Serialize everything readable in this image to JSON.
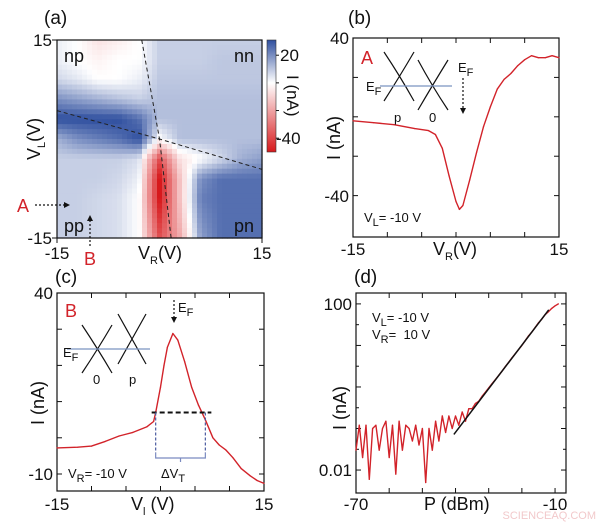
{
  "chart_data": [
    {
      "panel": "(a)",
      "type": "heatmap",
      "xlabel": {
        "main": "V",
        "sub": "R",
        "rest": "(V)"
      },
      "ylabel": {
        "main": "V",
        "sub": "L",
        "rest": "(V)"
      },
      "xlim": [
        -15,
        15
      ],
      "ylim": [
        -15,
        15
      ],
      "x_tick_labels": [
        "-15",
        "15"
      ],
      "y_tick_labels": [
        "15",
        "-15"
      ],
      "x": [
        -15,
        -12,
        -9,
        -6,
        -3,
        0,
        3,
        6,
        9,
        12,
        15
      ],
      "y": [
        15,
        12,
        9,
        6,
        3,
        0,
        -3,
        -6,
        -9,
        -12,
        -15
      ],
      "z": [
        [
          2,
          0,
          -5,
          -3,
          0,
          6,
          6,
          6,
          6,
          6,
          6
        ],
        [
          2,
          0,
          -2,
          0,
          0,
          6,
          6,
          6,
          7,
          7,
          7
        ],
        [
          5,
          3,
          0,
          0,
          2,
          7,
          7,
          7,
          7,
          7,
          7
        ],
        [
          14,
          12,
          10,
          8,
          6,
          8,
          8,
          8,
          8,
          8,
          8
        ],
        [
          22,
          22,
          22,
          22,
          18,
          8,
          8,
          8,
          8,
          8,
          8
        ],
        [
          10,
          14,
          16,
          18,
          22,
          0,
          8,
          8,
          8,
          8,
          8
        ],
        [
          6,
          6,
          6,
          6,
          4,
          -30,
          -5,
          0,
          5,
          10,
          12
        ],
        [
          6,
          6,
          6,
          5,
          2,
          -40,
          -10,
          14,
          18,
          18,
          18
        ],
        [
          6,
          6,
          5,
          4,
          0,
          -40,
          -10,
          16,
          18,
          18,
          18
        ],
        [
          6,
          6,
          5,
          4,
          0,
          -35,
          -12,
          14,
          18,
          18,
          18
        ],
        [
          6,
          6,
          5,
          4,
          0,
          -30,
          -15,
          12,
          18,
          18,
          18
        ]
      ],
      "colorbar": {
        "label": "I (nA)",
        "range": [
          -50,
          31
        ],
        "tick_labels": [
          "20",
          "-40"
        ],
        "ticks": [
          20,
          0,
          -20,
          -40
        ],
        "low_color": "#d7191c",
        "mid_color": "#ffffff",
        "high_color": "#2f4f9f"
      },
      "region_labels": [
        "np",
        "nn",
        "pp",
        "pn"
      ],
      "dashed_lines": [
        [
          [
            -2.6,
            15
          ],
          [
            0,
            0
          ],
          [
            1.7,
            -15
          ]
        ],
        [
          [
            -15,
            4.3
          ],
          [
            0,
            0
          ],
          [
            15,
            -4.6
          ]
        ]
      ],
      "markers": [
        {
          "label": "A",
          "direction": "right",
          "value": -10
        },
        {
          "label": "B",
          "direction": "up",
          "value": -10
        }
      ],
      "marker_color": "#d2232a"
    },
    {
      "panel": "(b)",
      "type": "line",
      "xlabel": {
        "main": "V",
        "sub": "R",
        "rest": "(V)"
      },
      "ylabel": "I (nA)",
      "xlim": [
        -15,
        15
      ],
      "ylim": [
        -61,
        40
      ],
      "x_tick_labels": [
        "-15",
        "15"
      ],
      "y_tick_labels": [
        "40",
        "-40"
      ],
      "x_ticks": [
        -15,
        -10,
        -5,
        0,
        5,
        10,
        15
      ],
      "y_ticks": [
        40,
        20,
        0,
        -20,
        -40
      ],
      "line_color": "#d2232a",
      "x": [
        -15,
        -12,
        -9,
        -6,
        -4,
        -3,
        -2,
        -1,
        0,
        0.5,
        1,
        2,
        3,
        4,
        5,
        6,
        7,
        8,
        9,
        10,
        11,
        12,
        13,
        14,
        15
      ],
      "y": [
        -2,
        -3,
        -4,
        -6,
        -7,
        -9,
        -16,
        -30,
        -43,
        -47,
        -45,
        -32,
        -18,
        -5,
        5,
        14,
        19,
        22,
        26,
        29,
        31,
        30,
        30,
        31,
        30
      ],
      "inset": {
        "marker": "A",
        "fermi": {
          "main": "E",
          "sub": "F"
        },
        "cones": [
          "p",
          "0"
        ],
        "arrow_label": {
          "main": "E",
          "sub": "F"
        }
      },
      "annotation": {
        "main": "V",
        "sub": "L",
        "rest": "= -10 V"
      }
    },
    {
      "panel": "(c)",
      "type": "line",
      "xlabel": {
        "main": "V",
        "sub": "l",
        "rest": " (V)"
      },
      "ylabel": "I (nA)",
      "xlim": [
        -15,
        15
      ],
      "ylim": [
        -14.7,
        40
      ],
      "x_tick_labels": [
        "-15",
        "15"
      ],
      "y_tick_labels": [
        "40",
        "-10"
      ],
      "x_ticks": [
        -15,
        -10,
        -5,
        0,
        5,
        10,
        15
      ],
      "y_ticks": [
        40,
        30,
        20,
        10,
        0,
        -10
      ],
      "line_color": "#d2232a",
      "x": [
        -15,
        -12,
        -10,
        -8,
        -6,
        -4,
        -2,
        -1,
        -0.7,
        0,
        0.5,
        1,
        1.8,
        2.5,
        3.5,
        4.5,
        5.5,
        6.5,
        7.6,
        8.5,
        9.5,
        10.5,
        11.7,
        13,
        14,
        15
      ],
      "y": [
        -2.8,
        -2.6,
        -2.3,
        -1,
        0.5,
        1.5,
        3,
        4.5,
        7,
        14,
        20,
        25,
        28.8,
        27,
        21,
        14,
        9,
        5,
        0,
        -2,
        -3.4,
        -5.5,
        -8.5,
        -10.5,
        -11.8,
        -12.6
      ],
      "threshold": {
        "level": 7,
        "from": -0.7,
        "to": 6.5,
        "label": {
          "main": "ΔV",
          "sub": "T"
        }
      },
      "inset": {
        "marker": "B",
        "fermi": {
          "main": "E",
          "sub": "F"
        },
        "cones": [
          "0",
          "p"
        ],
        "arrow_label": {
          "main": "E",
          "sub": "F"
        }
      },
      "annotation": {
        "main": "V",
        "sub": "R",
        "rest": "= -10 V"
      }
    },
    {
      "panel": "(d)",
      "type": "line",
      "xlabel": "P (dBm)",
      "ylabel": "I (nA)",
      "xlim": [
        -70,
        -6.7
      ],
      "ylim": [
        0.0028,
        183
      ],
      "yscale": "log",
      "x_tick_labels": [
        "-70",
        "-10"
      ],
      "y_tick_labels": [
        "100",
        "0.01"
      ],
      "x_ticks": [
        -70,
        -60,
        -50,
        -40,
        -30,
        -20,
        -10
      ],
      "y_ticks": [
        100,
        10,
        1,
        0.1,
        0.01
      ],
      "line_color": "#d2232a",
      "x": [
        -70,
        -69,
        -68,
        -67,
        -66,
        -65,
        -64,
        -63,
        -62,
        -61,
        -60,
        -59,
        -58,
        -57,
        -56,
        -55,
        -54,
        -53,
        -52,
        -51,
        -50,
        -49,
        -48,
        -47,
        -46,
        -45,
        -44,
        -43,
        -42,
        -41,
        -40,
        -39,
        -38,
        -37,
        -36,
        -35,
        -34,
        -33,
        -32,
        -31,
        -30,
        -29,
        -28,
        -27,
        -26,
        -25,
        -24,
        -23,
        -22,
        -21,
        -20,
        -19,
        -18,
        -17,
        -16,
        -15,
        -14,
        -13,
        -12,
        -11,
        -10,
        -9
      ],
      "y": [
        0.03,
        0.12,
        0.02,
        0.12,
        0.006,
        0.1,
        0.12,
        0.03,
        0.1,
        0.15,
        0.02,
        0.12,
        0.008,
        0.15,
        0.03,
        0.12,
        0.1,
        0.05,
        0.12,
        0.04,
        0.1,
        0.005,
        0.1,
        0.03,
        0.15,
        0.05,
        0.2,
        0.08,
        0.2,
        0.1,
        0.2,
        0.12,
        0.25,
        0.15,
        0.3,
        0.3,
        0.4,
        0.45,
        0.6,
        0.75,
        0.95,
        1.2,
        1.5,
        1.9,
        2.4,
        3.1,
        3.9,
        5,
        6.3,
        8,
        10,
        13,
        17,
        21,
        27,
        35,
        43,
        55,
        65,
        78,
        90,
        100
      ],
      "fit": {
        "x": [
          -40.5,
          -11.9
        ],
        "y": [
          0.072,
          72
        ],
        "color": "#111111"
      },
      "annotations": [
        {
          "main": "V",
          "sub": "L",
          "rest": "= -10 V"
        },
        {
          "main": "V",
          "sub": "R",
          "rest": "=  10 V"
        }
      ]
    }
  ],
  "watermark": "SCIENCEAQ.COM"
}
